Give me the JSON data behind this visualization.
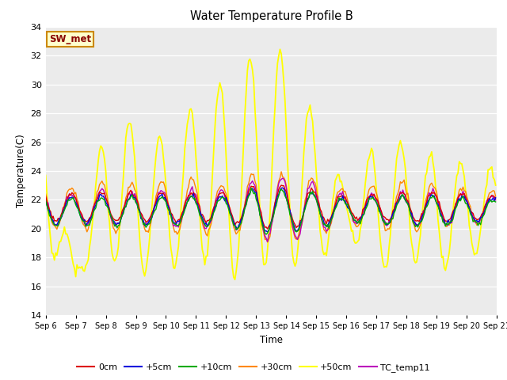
{
  "title": "Water Temperature Profile B",
  "xlabel": "Time",
  "ylabel": "Temperature(C)",
  "ylim": [
    14,
    34
  ],
  "yticks": [
    14,
    16,
    18,
    20,
    22,
    24,
    26,
    28,
    30,
    32,
    34
  ],
  "bg_color": "#ebebeb",
  "plot_bg": "#ebebeb",
  "annotation_label": "SW_met",
  "annotation_bg": "#ffffcc",
  "annotation_border": "#cc8800",
  "annotation_text_color": "#880000",
  "series": {
    "0cm": {
      "color": "#dd0000",
      "lw": 1.0
    },
    "+5cm": {
      "color": "#0000dd",
      "lw": 1.0
    },
    "+10cm": {
      "color": "#00aa00",
      "lw": 1.0
    },
    "+30cm": {
      "color": "#ff8800",
      "lw": 1.0
    },
    "+50cm": {
      "color": "#ffff00",
      "lw": 1.3
    },
    "TC_temp11": {
      "color": "#bb00bb",
      "lw": 1.0
    }
  },
  "days": 15,
  "start_day": 6,
  "points_per_day": 24,
  "legend_order": [
    "0cm",
    "+5cm",
    "+10cm",
    "+30cm",
    "+50cm",
    "TC_temp11"
  ]
}
